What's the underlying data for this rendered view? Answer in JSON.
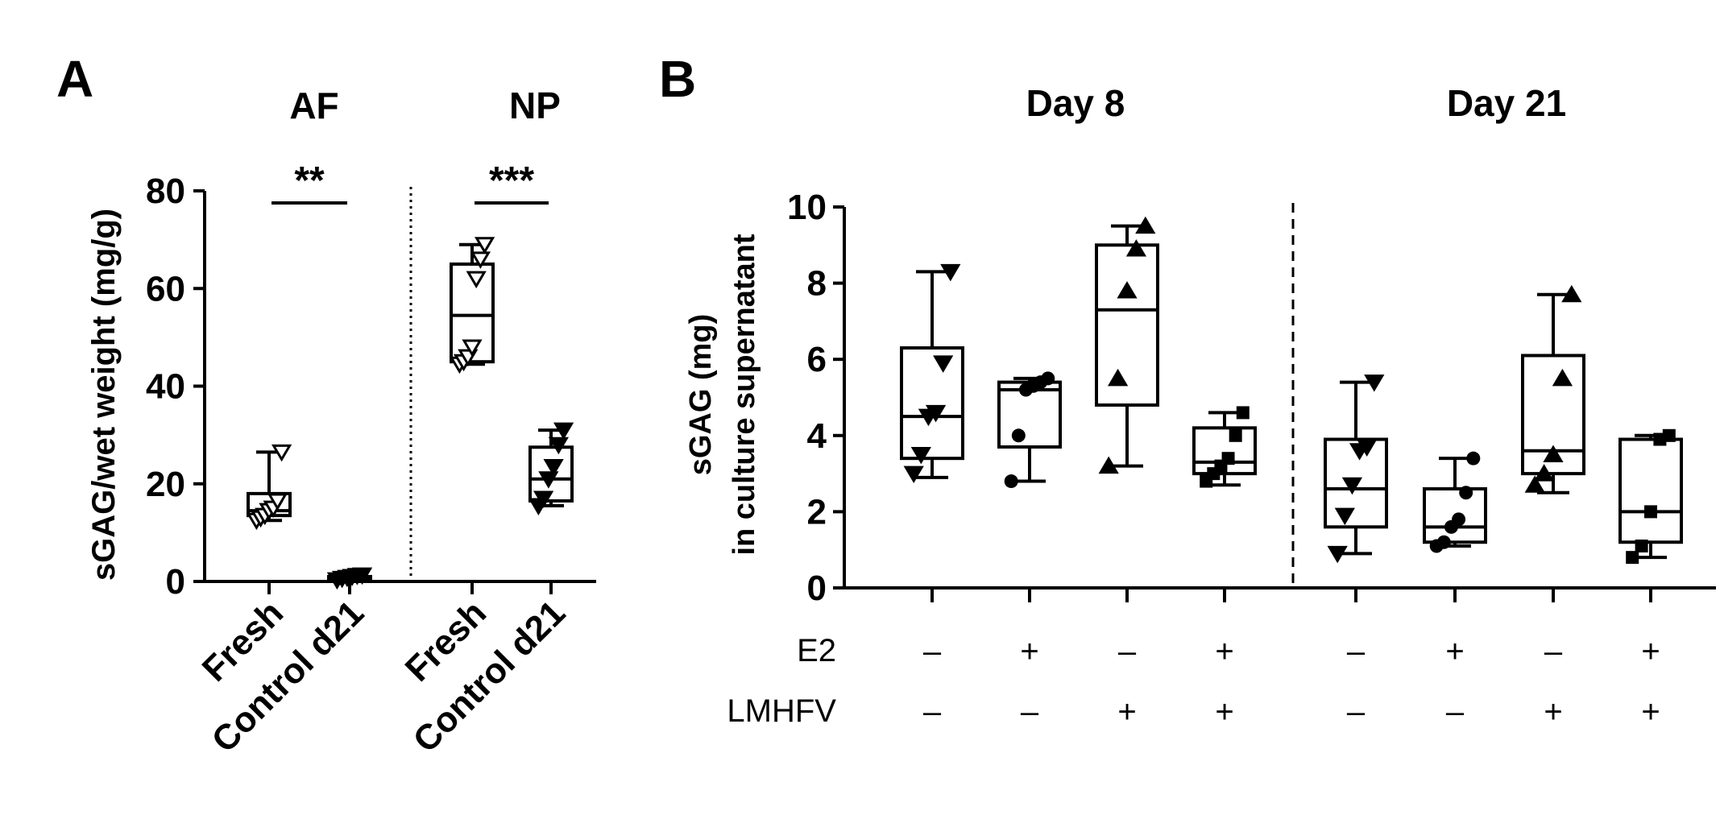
{
  "chart_data": [
    {
      "panel_label": "A",
      "type": "boxplot",
      "ylabel": "sGAG/wet weight (mg/g)",
      "ylim": [
        0,
        80
      ],
      "yticks": [
        0,
        20,
        40,
        60,
        80
      ],
      "groups": [
        {
          "title": "AF",
          "significance": "**",
          "boxes": [
            {
              "label": "Fresh",
              "min": 12.5,
              "q1": 13.5,
              "median": 14.5,
              "q3": 18,
              "max": 26.5,
              "marker": "open-triangle-down",
              "points": [
                12.5,
                13,
                13.5,
                14.5,
                15,
                16.5,
                26.5
              ]
            },
            {
              "label": "Control d21",
              "min": 0.3,
              "q1": 0.5,
              "median": 0.8,
              "q3": 1.0,
              "max": 1.3,
              "marker": "filled-triangle-down",
              "points": [
                0.3,
                0.6,
                0.8,
                1.0,
                1.2,
                1.3
              ]
            }
          ]
        },
        {
          "title": "NP",
          "significance": "***",
          "boxes": [
            {
              "label": "Fresh",
              "min": 44.5,
              "q1": 45,
              "median": 54.5,
              "q3": 65,
              "max": 69,
              "marker": "open-triangle-down",
              "points": [
                44.5,
                45,
                46,
                48,
                62,
                66,
                69
              ]
            },
            {
              "label": "Control d21",
              "min": 15.5,
              "q1": 16.5,
              "median": 21,
              "q3": 27.5,
              "max": 31,
              "marker": "filled-triangle-down",
              "points": [
                15.5,
                17,
                21,
                23.5,
                28,
                31
              ]
            }
          ]
        }
      ]
    },
    {
      "panel_label": "B",
      "type": "boxplot",
      "ylabel_line1": "sGAG (mg)",
      "ylabel_line2": "in culture supernatant",
      "ylim": [
        0,
        10
      ],
      "yticks": [
        0,
        2,
        4,
        6,
        8,
        10
      ],
      "factor_labels": [
        "E2",
        "LMHFV"
      ],
      "groups": [
        {
          "title": "Day 8",
          "boxes": [
            {
              "E2": "–",
              "LMHFV": "–",
              "min": 2.9,
              "q1": 3.4,
              "median": 4.5,
              "q3": 6.3,
              "max": 8.3,
              "marker": "triangle-down",
              "points": [
                3.0,
                3.5,
                4.5,
                4.6,
                5.9,
                8.3
              ]
            },
            {
              "E2": "+",
              "LMHFV": "–",
              "min": 2.8,
              "q1": 3.7,
              "median": 5.2,
              "q3": 5.4,
              "max": 5.5,
              "marker": "circle",
              "points": [
                2.8,
                4.0,
                5.2,
                5.3,
                5.4,
                5.5
              ]
            },
            {
              "E2": "–",
              "LMHFV": "+",
              "min": 3.2,
              "q1": 4.8,
              "median": 7.3,
              "q3": 9.0,
              "max": 9.5,
              "marker": "triangle-up",
              "points": [
                3.2,
                5.5,
                7.8,
                8.9,
                9.5
              ]
            },
            {
              "E2": "+",
              "LMHFV": "+",
              "min": 2.7,
              "q1": 3.0,
              "median": 3.3,
              "q3": 4.2,
              "max": 4.6,
              "marker": "square",
              "points": [
                2.8,
                3.0,
                3.2,
                3.4,
                4.0,
                4.6
              ]
            }
          ]
        },
        {
          "title": "Day 21",
          "boxes": [
            {
              "E2": "–",
              "LMHFV": "–",
              "min": 0.9,
              "q1": 1.6,
              "median": 2.6,
              "q3": 3.9,
              "max": 5.4,
              "marker": "triangle-down",
              "points": [
                0.9,
                1.9,
                2.7,
                3.6,
                3.7,
                5.4
              ]
            },
            {
              "E2": "+",
              "LMHFV": "–",
              "min": 1.1,
              "q1": 1.2,
              "median": 1.6,
              "q3": 2.6,
              "max": 3.4,
              "marker": "circle",
              "points": [
                1.1,
                1.2,
                1.6,
                1.8,
                2.5,
                3.4
              ]
            },
            {
              "E2": "–",
              "LMHFV": "+",
              "min": 2.5,
              "q1": 3.0,
              "median": 3.6,
              "q3": 6.1,
              "max": 7.7,
              "marker": "triangle-up",
              "points": [
                2.7,
                3.0,
                3.5,
                5.5,
                7.7
              ]
            },
            {
              "E2": "+",
              "LMHFV": "+",
              "min": 0.8,
              "q1": 1.2,
              "median": 2.0,
              "q3": 3.9,
              "max": 4.0,
              "marker": "square",
              "points": [
                0.8,
                1.1,
                2.0,
                3.9,
                4.0
              ]
            }
          ]
        }
      ]
    }
  ]
}
